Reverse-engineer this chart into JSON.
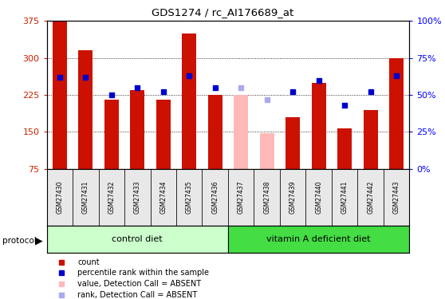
{
  "title": "GDS1274 / rc_AI176689_at",
  "samples": [
    "GSM27430",
    "GSM27431",
    "GSM27432",
    "GSM27433",
    "GSM27434",
    "GSM27435",
    "GSM27436",
    "GSM27437",
    "GSM27438",
    "GSM27439",
    "GSM27440",
    "GSM27441",
    "GSM27442",
    "GSM27443"
  ],
  "counts": [
    375,
    315,
    215,
    235,
    215,
    350,
    225,
    225,
    148,
    180,
    250,
    157,
    195,
    300
  ],
  "ranks": [
    62,
    62,
    50,
    55,
    52,
    63,
    55,
    55,
    47,
    52,
    60,
    43,
    52,
    63
  ],
  "absent": [
    false,
    false,
    false,
    false,
    false,
    false,
    false,
    true,
    true,
    false,
    false,
    false,
    false,
    false
  ],
  "ylim_left": [
    75,
    375
  ],
  "ylim_right": [
    0,
    100
  ],
  "yticks_left": [
    75,
    150,
    225,
    300,
    375
  ],
  "yticks_right": [
    0,
    25,
    50,
    75,
    100
  ],
  "bar_color_present": "#CC1100",
  "bar_color_absent": "#FFB8B8",
  "rank_color_present": "#0000CC",
  "rank_color_absent": "#AAAAEE",
  "group1_label": "control diet",
  "group2_label": "vitamin A deficient diet",
  "group1_count": 7,
  "protocol_label": "protocol",
  "legend_items": [
    {
      "label": "count",
      "color": "#CC1100"
    },
    {
      "label": "percentile rank within the sample",
      "color": "#0000CC"
    },
    {
      "label": "value, Detection Call = ABSENT",
      "color": "#FFB8B8"
    },
    {
      "label": "rank, Detection Call = ABSENT",
      "color": "#AAAAEE"
    }
  ],
  "background_color": "#ffffff",
  "group1_color": "#CCFFCC",
  "group2_color": "#44DD44",
  "label_cell_color": "#E8E8E8",
  "label_bg_color": "#BBBBBB"
}
